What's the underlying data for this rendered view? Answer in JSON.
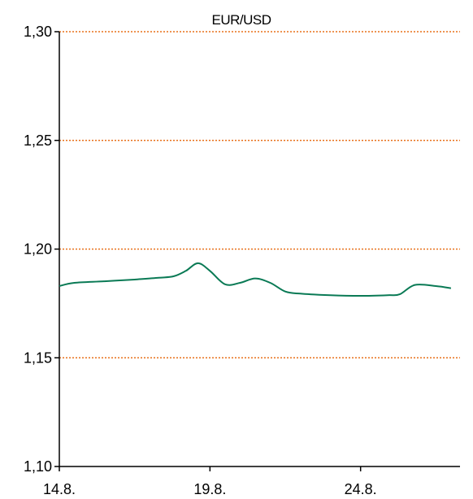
{
  "chart_data": {
    "type": "line",
    "title": "EUR/USD",
    "xlabel": "",
    "ylabel": "",
    "ylim": [
      1.1,
      1.3
    ],
    "y_ticks": [
      "1,10",
      "1,15",
      "1,20",
      "1,25",
      "1,30"
    ],
    "y_tick_values": [
      1.1,
      1.15,
      1.2,
      1.25,
      1.3
    ],
    "x_ticks": [
      "14.8.",
      "19.8.",
      "24.8."
    ],
    "x_tick_days": [
      14,
      19,
      24
    ],
    "xlim_days": [
      14,
      27.3
    ],
    "grid": true,
    "colors": {
      "line": "#0a7a55",
      "grid": "#e8701a",
      "axis": "#000000"
    },
    "series": [
      {
        "x": [
          14.0,
          14.5,
          15.5,
          16.5,
          17.3,
          17.8,
          18.2,
          18.6,
          19.0,
          19.5,
          20.0,
          20.5,
          21.0,
          21.5,
          22.0,
          23.0,
          24.0,
          24.9,
          25.3,
          25.8,
          26.5,
          27.0
        ],
        "values": [
          1.183,
          1.1845,
          1.1852,
          1.186,
          1.1868,
          1.1875,
          1.19,
          1.1935,
          1.19,
          1.1838,
          1.1845,
          1.1865,
          1.1845,
          1.1805,
          1.1795,
          1.1788,
          1.1785,
          1.1788,
          1.1792,
          1.1835,
          1.183,
          1.182
        ]
      }
    ]
  }
}
